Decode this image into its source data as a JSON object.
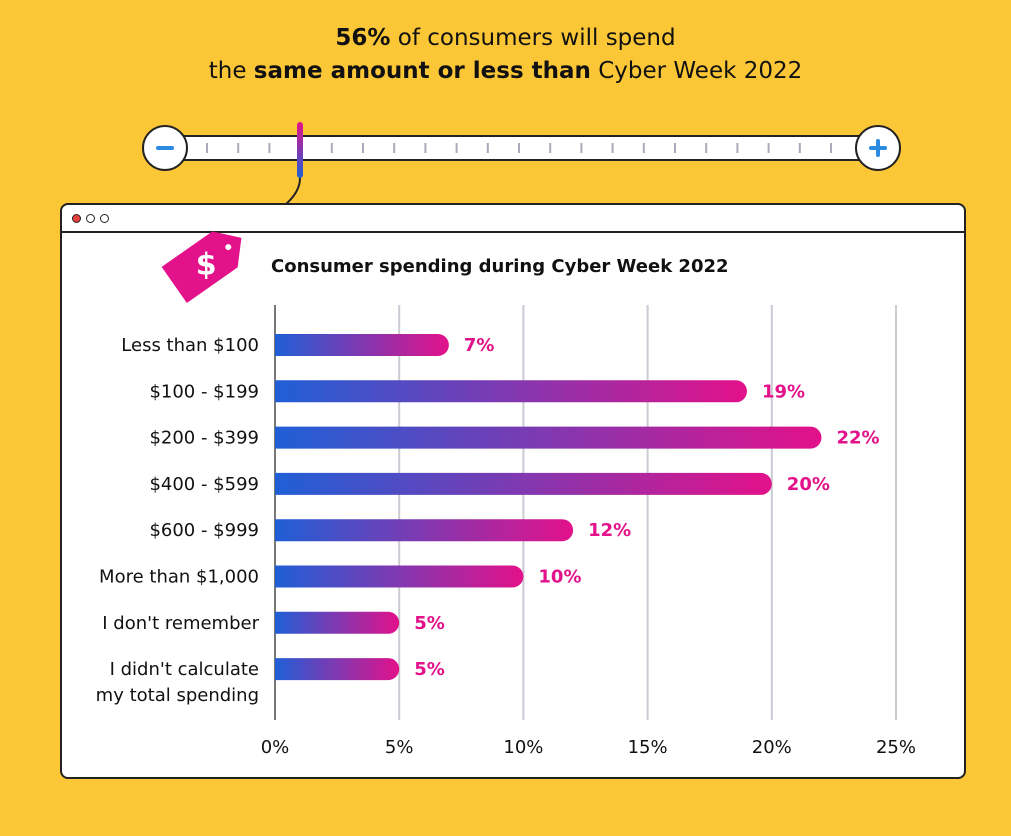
{
  "headline": {
    "line1_bold": "56%",
    "line1_rest": " of consumers will spend",
    "line2_pre": "the ",
    "line2_bold": "same amount or less than",
    "line2_post": " Cyber Week 2022"
  },
  "slider": {
    "minus_icon": "minus-icon",
    "plus_icon": "plus-icon"
  },
  "colors": {
    "background": "#fcc737",
    "bar_start": "#1f5fd6",
    "bar_end": "#e3118a",
    "value_label": "#e3118a"
  },
  "chart_data": {
    "type": "bar",
    "orientation": "horizontal",
    "title": "Consumer spending during Cyber Week 2022",
    "categories": [
      "Less than $100",
      "$100 - $199",
      "$200 - $399",
      "$400 - $599",
      "$600 - $999",
      "More than $1,000",
      "I don't remember",
      "I didn't calculate\nmy total spending"
    ],
    "values": [
      7,
      19,
      22,
      20,
      12,
      10,
      5,
      5
    ],
    "data_labels": [
      "7%",
      "19%",
      "22%",
      "20%",
      "12%",
      "10%",
      "5%",
      "5%"
    ],
    "xlim": [
      0,
      25
    ],
    "xticks": [
      "0%",
      "5%",
      "10%",
      "15%",
      "20%",
      "25%"
    ],
    "grid": true
  }
}
